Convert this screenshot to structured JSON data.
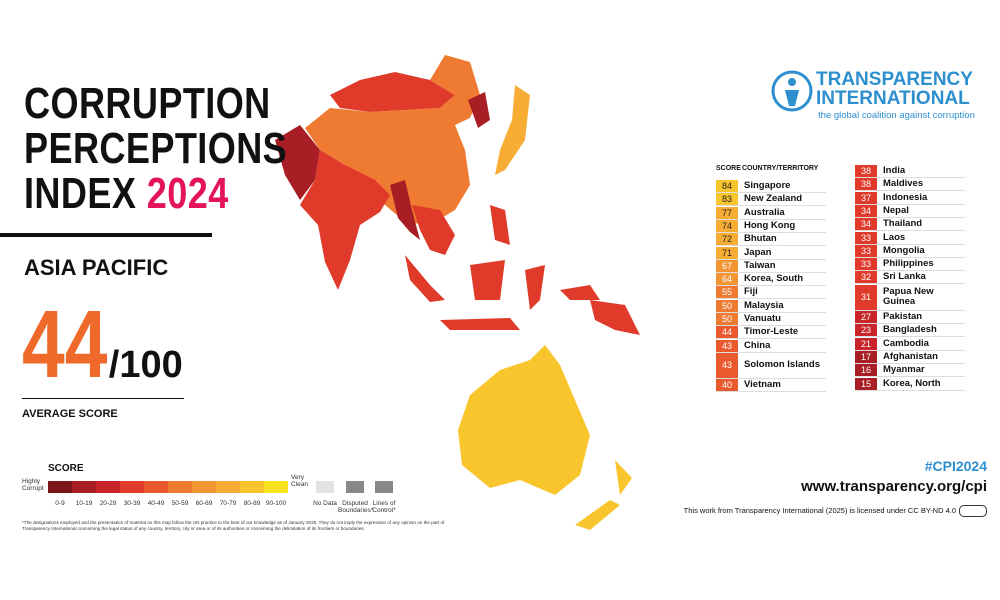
{
  "header": {
    "title_lines": [
      "CORRUPTION",
      "PERCEPTIONS",
      "INDEX"
    ],
    "year": "2024"
  },
  "region": "ASIA PACIFIC",
  "average": {
    "score": 44,
    "out_of": "/100",
    "label": "AVERAGE SCORE"
  },
  "legend": {
    "title": "SCORE",
    "low_label": "Highly Corrupt",
    "high_label": "Very Clean",
    "bins": [
      "0-9",
      "10-19",
      "20-29",
      "30-39",
      "40-49",
      "50-59",
      "60-69",
      "70-79",
      "80-89",
      "90-100"
    ],
    "colors": [
      "#7d1418",
      "#a81e24",
      "#c8242a",
      "#df3a2a",
      "#e9592d",
      "#ef7a31",
      "#f39533",
      "#f7ad33",
      "#f9c52d",
      "#f9e21f"
    ],
    "no_data": "No Data",
    "disputed": "Disputed Boundaries*",
    "lines_of_control": "Lines of Control*"
  },
  "disclaimer": "*The designations employed and the presentation of material on this map follow the UN practice to the best of our knowledge as of January 2025. They do not imply the expression of any opinion on the part of Transparency International concerning the legal status of any country, territory, city or area or of its authorities or concerning the delimitation of its frontiers or boundaries.",
  "logo": {
    "line1": "TRANSPARENCY",
    "line2": "INTERNATIONAL",
    "tagline": "the global coalition against corruption"
  },
  "table": {
    "headers": [
      "SCORE",
      "COUNTRY/TERRITORY"
    ],
    "columns": [
      [
        {
          "score": 84,
          "name": "Singapore"
        },
        {
          "score": 83,
          "name": "New Zealand"
        },
        {
          "score": 77,
          "name": "Australia"
        },
        {
          "score": 74,
          "name": "Hong Kong"
        },
        {
          "score": 72,
          "name": "Bhutan"
        },
        {
          "score": 71,
          "name": "Japan"
        },
        {
          "score": 67,
          "name": "Taiwan"
        },
        {
          "score": 64,
          "name": "Korea, South"
        },
        {
          "score": 55,
          "name": "Fiji"
        },
        {
          "score": 50,
          "name": "Malaysia"
        },
        {
          "score": 50,
          "name": "Vanuatu"
        },
        {
          "score": 44,
          "name": "Timor-Leste"
        },
        {
          "score": 43,
          "name": "China"
        },
        {
          "score": 43,
          "name": "Solomon Islands"
        },
        {
          "score": 40,
          "name": "Vietnam"
        }
      ],
      [
        {
          "score": 38,
          "name": "India"
        },
        {
          "score": 38,
          "name": "Maldives"
        },
        {
          "score": 37,
          "name": "Indonesia"
        },
        {
          "score": 34,
          "name": "Nepal"
        },
        {
          "score": 34,
          "name": "Thailand"
        },
        {
          "score": 33,
          "name": "Laos"
        },
        {
          "score": 33,
          "name": "Mongolia"
        },
        {
          "score": 33,
          "name": "Philippines"
        },
        {
          "score": 32,
          "name": "Sri Lanka"
        },
        {
          "score": 31,
          "name": "Papua New Guinea"
        },
        {
          "score": 27,
          "name": "Pakistan"
        },
        {
          "score": 23,
          "name": "Bangladesh"
        },
        {
          "score": 21,
          "name": "Cambodia"
        },
        {
          "score": 17,
          "name": "Afghanistan"
        },
        {
          "score": 16,
          "name": "Myanmar"
        },
        {
          "score": 15,
          "name": "Korea, North"
        }
      ]
    ]
  },
  "footer": {
    "hashtag": "#CPI2024",
    "url": "www.transparency.org/cpi",
    "license": "This work from Transparency International (2025) is licensed under CC BY-ND 4.0"
  }
}
